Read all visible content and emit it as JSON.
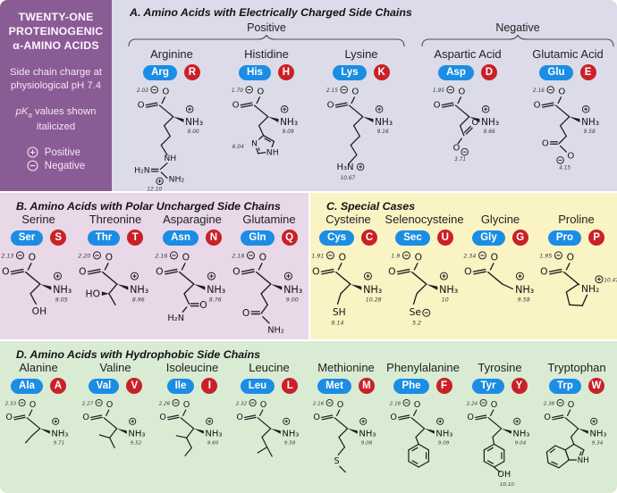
{
  "sidebar": {
    "title_lines": [
      "TWENTY-ONE",
      "PROTEINOGENIC",
      "α-AMINO ACIDS"
    ],
    "note1": "Side chain charge at physiological pH 7.4",
    "note2_pk": "pK",
    "note2_sub": "a",
    "note2_rest": " values shown italicized",
    "legend": [
      {
        "sign": "+",
        "label": "Positive"
      },
      {
        "sign": "-",
        "label": "Negative"
      }
    ]
  },
  "sections": {
    "a": {
      "title": "A. Amino Acids with Electrically Charged Side Chains",
      "groups": [
        {
          "label": "Positive",
          "acids": [
            "arg",
            "his",
            "lys"
          ]
        },
        {
          "label": "Negative",
          "acids": [
            "asp",
            "glu"
          ]
        }
      ]
    },
    "b": {
      "title": "B. Amino Acids with Polar Uncharged Side Chains",
      "acids": [
        "ser",
        "thr",
        "asn",
        "gln"
      ]
    },
    "c": {
      "title": "C. Special Cases",
      "acids": [
        "cys",
        "sec",
        "gly",
        "pro"
      ]
    },
    "d": {
      "title": "D. Amino Acids with Hydrophobic Side Chains",
      "acids": [
        "ala",
        "val",
        "ile",
        "leu",
        "met",
        "phe",
        "tyr",
        "trp"
      ]
    }
  },
  "atoms": {
    "o": "O",
    "amine": "NH₃"
  },
  "acids": {
    "arg": {
      "name": "Arginine",
      "code3": "Arg",
      "code1": "R",
      "pka1": "2.03",
      "pka2": "9.00",
      "side_pka": "12.10",
      "labels": {
        "nh": "NH",
        "h2n": "H₂N",
        "nh2": "NH₂"
      }
    },
    "his": {
      "name": "Histidine",
      "code3": "His",
      "code1": "H",
      "pka1": "1.70",
      "pka2": "9.09",
      "side_pka": "6.04",
      "labels": {
        "n": "N",
        "nh": "NH"
      }
    },
    "lys": {
      "name": "Lysine",
      "code3": "Lys",
      "code1": "K",
      "pka1": "2.15",
      "pka2": "9.16",
      "side_pka": "10.67",
      "labels": {
        "h3n": "H₃N"
      }
    },
    "asp": {
      "name": "Aspartic Acid",
      "code3": "Asp",
      "code1": "D",
      "pka1": "1.95",
      "pka2": "9.66",
      "side_pka": "3.71",
      "labels": {}
    },
    "glu": {
      "name": "Glutamic Acid",
      "code3": "Glu",
      "code1": "E",
      "pka1": "2.16",
      "pka2": "9.58",
      "side_pka": "4.15",
      "labels": {}
    },
    "ser": {
      "name": "Serine",
      "code3": "Ser",
      "code1": "S",
      "pka1": "2.13",
      "pka2": "9.05",
      "labels": {
        "oh": "OH"
      }
    },
    "thr": {
      "name": "Threonine",
      "code3": "Thr",
      "code1": "T",
      "pka1": "2.20",
      "pka2": "8.96",
      "labels": {
        "ho": "HO"
      }
    },
    "asn": {
      "name": "Asparagine",
      "code3": "Asn",
      "code1": "N",
      "pka1": "2.16",
      "pka2": "8.76",
      "labels": {
        "h2n": "H₂N"
      }
    },
    "gln": {
      "name": "Glutamine",
      "code3": "Gln",
      "code1": "Q",
      "pka1": "2.18",
      "pka2": "9.00",
      "labels": {
        "nh2": "NH₂"
      }
    },
    "cys": {
      "name": "Cysteine",
      "code3": "Cys",
      "code1": "C",
      "pka1": "1.91",
      "pka2": "10.28",
      "side_pka": "8.14",
      "labels": {
        "sh": "SH"
      }
    },
    "sec": {
      "name": "Selenocysteine",
      "code3": "Sec",
      "code1": "U",
      "pka1": "1.9",
      "pka2": "10",
      "side_pka": "5.2",
      "labels": {
        "se": "Se"
      }
    },
    "gly": {
      "name": "Glycine",
      "code3": "Gly",
      "code1": "G",
      "pka1": "2.34",
      "pka2": "9.58",
      "labels": {}
    },
    "pro": {
      "name": "Proline",
      "code3": "Pro",
      "code1": "P",
      "pka1": "1.95",
      "pka2": "10.47",
      "labels": {
        "nh2": "NH₂"
      }
    },
    "ala": {
      "name": "Alanine",
      "code3": "Ala",
      "code1": "A",
      "pka1": "2.33",
      "pka2": "9.71",
      "labels": {}
    },
    "val": {
      "name": "Valine",
      "code3": "Val",
      "code1": "V",
      "pka1": "2.27",
      "pka2": "9.52",
      "labels": {}
    },
    "ile": {
      "name": "Isoleucine",
      "code3": "Ile",
      "code1": "I",
      "pka1": "2.26",
      "pka2": "9.60",
      "labels": {}
    },
    "leu": {
      "name": "Leucine",
      "code3": "Leu",
      "code1": "L",
      "pka1": "2.32",
      "pka2": "9.58",
      "labels": {}
    },
    "met": {
      "name": "Methionine",
      "code3": "Met",
      "code1": "M",
      "pka1": "2.16",
      "pka2": "9.08",
      "labels": {
        "s": "S"
      }
    },
    "phe": {
      "name": "Phenylalanine",
      "code3": "Phe",
      "code1": "F",
      "pka1": "2.18",
      "pka2": "9.09",
      "labels": {}
    },
    "tyr": {
      "name": "Tyrosine",
      "code3": "Tyr",
      "code1": "Y",
      "pka1": "2.24",
      "pka2": "9.04",
      "side_pka": "10.10",
      "labels": {
        "oh": "OH"
      }
    },
    "trp": {
      "name": "Tryptophan",
      "code3": "Trp",
      "code1": "W",
      "pka1": "2.38",
      "pka2": "9.34",
      "labels": {
        "nh": "NH"
      }
    }
  },
  "colors": {
    "sidebar_bg": "#8a5c95",
    "section_a_bg": "#dcdbe9",
    "section_b_bg": "#e8d8e8",
    "section_c_bg": "#faf3c3",
    "section_d_bg": "#d9ebd3",
    "code3_pill_bg": "#1b8de4",
    "code1_pill_bg": "#c92128"
  }
}
